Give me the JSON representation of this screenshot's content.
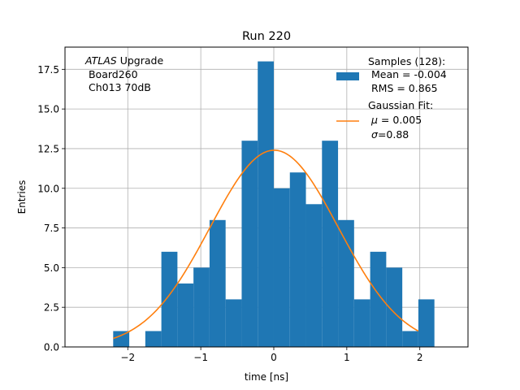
{
  "chart_data": {
    "type": "bar",
    "title": "Run 220",
    "xlabel": "time [ns]",
    "ylabel": "Entries",
    "xlim": [
      -2.86,
      2.66
    ],
    "ylim": [
      0,
      18.9
    ],
    "grid": true,
    "x_ticks": [
      -2,
      -1,
      0,
      1,
      2
    ],
    "x_tick_labels": [
      "−2",
      "−1",
      "0",
      "1",
      "2"
    ],
    "y_ticks": [
      0.0,
      2.5,
      5.0,
      7.5,
      10.0,
      12.5,
      15.0,
      17.5
    ],
    "y_tick_labels": [
      "0.0",
      "2.5",
      "5.0",
      "7.5",
      "10.0",
      "12.5",
      "15.0",
      "17.5"
    ],
    "histogram": {
      "name": "Samples (128):",
      "color": "#1f77b4",
      "bin_edges": [
        -2.2,
        -1.98,
        -1.76,
        -1.54,
        -1.32,
        -1.1,
        -0.88,
        -0.66,
        -0.44,
        -0.22,
        0.0,
        0.22,
        0.44,
        0.66,
        0.88,
        1.1,
        1.32,
        1.54,
        1.76,
        1.98
      ],
      "counts": [
        1,
        0,
        1,
        6,
        4,
        5,
        8,
        3,
        13,
        18,
        10,
        11,
        9,
        13,
        8,
        3,
        6,
        5,
        1,
        3
      ]
    },
    "fit": {
      "name": "Gaussian Fit:",
      "color": "#ff7f0e",
      "mu": 0.005,
      "sigma": 0.88,
      "amplitude": 12.4,
      "x_range": [
        -2.2,
        1.98
      ]
    },
    "annotation": {
      "experiment": "ATLAS",
      "experiment_suffix": " Upgrade",
      "line2": " Board260",
      "line3": " Ch013 70dB"
    },
    "legend": {
      "placement": "upper right",
      "hist_line1": "Samples (128):",
      "hist_line2": " Mean = -0.004",
      "hist_line3": " RMS = 0.865",
      "fit_line1": "Gaussian Fit:",
      "fit_mu_symbol": "μ",
      "fit_mu_value": " = 0.005",
      "fit_sigma_symbol": "σ",
      "fit_sigma_value": "=0.88"
    }
  }
}
